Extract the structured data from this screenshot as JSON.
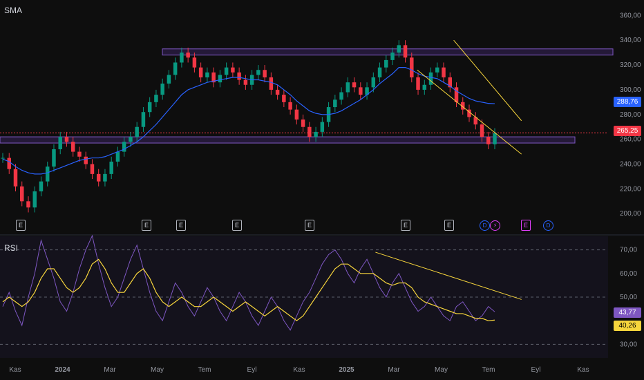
{
  "panels": {
    "price_label": "SMA",
    "rsi_label": "RSI"
  },
  "price_axis": {
    "ticks": [
      "360,00",
      "340,00",
      "320,00",
      "300,00",
      "280,00",
      "260,00",
      "240,00",
      "220,00",
      "200,00"
    ],
    "values": [
      360,
      340,
      320,
      300,
      280,
      260,
      240,
      220,
      200
    ],
    "ylim": [
      194,
      368
    ]
  },
  "rsi_axis": {
    "ticks": [
      "70,00",
      "60,00",
      "50,00",
      "30,00"
    ],
    "values": [
      70,
      60,
      50,
      30
    ],
    "ylim": [
      26,
      74
    ]
  },
  "time_axis": {
    "labels": [
      "Kas",
      "2024",
      "Mar",
      "May",
      "Tem",
      "Eyl",
      "Kas",
      "2025",
      "Mar",
      "May",
      "Tem",
      "Eyl",
      "Kas"
    ],
    "bold": [
      false,
      true,
      false,
      false,
      false,
      false,
      false,
      true,
      false,
      false,
      false,
      false,
      false
    ]
  },
  "badges": {
    "sma_value": "288,76",
    "price_value": "265,25",
    "rsi_value": "43,77",
    "rsi_ma_value": "40,26",
    "sma_color": "#2962ff",
    "price_color": "#f23645",
    "rsi_color": "#7e57c2",
    "rsi_ma_color": "#f7d53c"
  },
  "events": {
    "earnings_letter": "E",
    "dividend_letter": "D",
    "split_glyph": "⚡"
  },
  "chart_data": [
    {
      "type": "candlestick",
      "title": "SMA",
      "series": [
        {
          "name": "price",
          "values": [
            245,
            236,
            222,
            210,
            205,
            218,
            226,
            238,
            252,
            262,
            258,
            250,
            246,
            240,
            232,
            226,
            232,
            242,
            250,
            258,
            262,
            270,
            282,
            290,
            296,
            305,
            312,
            322,
            330,
            326,
            318,
            310,
            314,
            306,
            312,
            318,
            314,
            308,
            304,
            312,
            316,
            310,
            300,
            296,
            290,
            284,
            276,
            270,
            262,
            266,
            274,
            286,
            292,
            298,
            306,
            302,
            296,
            302,
            310,
            318,
            324,
            330,
            336,
            326,
            310,
            300,
            304,
            314,
            318,
            310,
            302,
            290,
            284,
            278,
            272,
            262,
            256,
            265
          ]
        },
        {
          "name": "sma",
          "values": [
            244,
            242,
            238,
            235,
            233,
            232,
            232,
            233,
            235,
            237,
            239,
            241,
            243,
            244,
            245,
            245,
            246,
            248,
            250,
            252,
            255,
            258,
            262,
            267,
            272,
            278,
            284,
            290,
            296,
            300,
            302,
            304,
            306,
            307,
            308,
            309,
            310,
            310,
            309,
            308,
            308,
            307,
            306,
            304,
            300,
            296,
            291,
            287,
            283,
            281,
            280,
            280,
            281,
            283,
            286,
            289,
            292,
            296,
            300,
            305,
            309,
            313,
            318,
            318,
            316,
            313,
            311,
            310,
            309,
            306,
            303,
            299,
            296,
            293,
            291,
            290,
            289,
            288.76
          ]
        }
      ],
      "levels": [
        {
          "name": "resistance zone",
          "from": 328,
          "to": 333
        },
        {
          "name": "support zone",
          "from": 257,
          "to": 262
        }
      ],
      "trendlines": [
        {
          "from": [
            0.87,
            340
          ],
          "to": [
            1.0,
            275
          ]
        },
        {
          "from": [
            0.8,
            316
          ],
          "to": [
            1.0,
            248
          ]
        }
      ],
      "last_price": 265.25,
      "ylim": [
        194,
        368
      ]
    },
    {
      "type": "line",
      "title": "RSI",
      "series": [
        {
          "name": "RSI",
          "values": [
            46,
            52,
            44,
            38,
            50,
            60,
            74,
            66,
            58,
            48,
            44,
            52,
            62,
            70,
            76,
            64,
            54,
            46,
            50,
            58,
            66,
            72,
            62,
            52,
            44,
            40,
            48,
            56,
            52,
            46,
            42,
            48,
            54,
            50,
            44,
            40,
            46,
            52,
            48,
            42,
            38,
            44,
            50,
            46,
            40,
            36,
            42,
            48,
            52,
            58,
            64,
            68,
            70,
            66,
            60,
            56,
            62,
            66,
            60,
            54,
            50,
            56,
            60,
            54,
            48,
            44,
            46,
            50,
            46,
            42,
            40,
            46,
            48,
            44,
            40,
            42,
            46,
            43.77
          ]
        },
        {
          "name": "RSI MA",
          "values": [
            48,
            50,
            48,
            46,
            48,
            52,
            58,
            62,
            62,
            58,
            54,
            52,
            54,
            58,
            64,
            66,
            62,
            56,
            52,
            52,
            56,
            60,
            62,
            58,
            52,
            48,
            46,
            48,
            50,
            48,
            46,
            46,
            48,
            50,
            48,
            46,
            44,
            46,
            48,
            46,
            44,
            42,
            44,
            46,
            44,
            42,
            40,
            42,
            46,
            50,
            54,
            58,
            62,
            64,
            64,
            62,
            60,
            60,
            60,
            58,
            56,
            55,
            56,
            56,
            54,
            50,
            48,
            47,
            46,
            45,
            44,
            43,
            43,
            42,
            41,
            41,
            40,
            40.26
          ]
        }
      ],
      "reference_lines": [
        70,
        50,
        30
      ],
      "trendlines": [
        {
          "from": [
            0.72,
            69
          ],
          "to": [
            1.0,
            49
          ]
        }
      ],
      "ylim": [
        26,
        74
      ]
    }
  ]
}
